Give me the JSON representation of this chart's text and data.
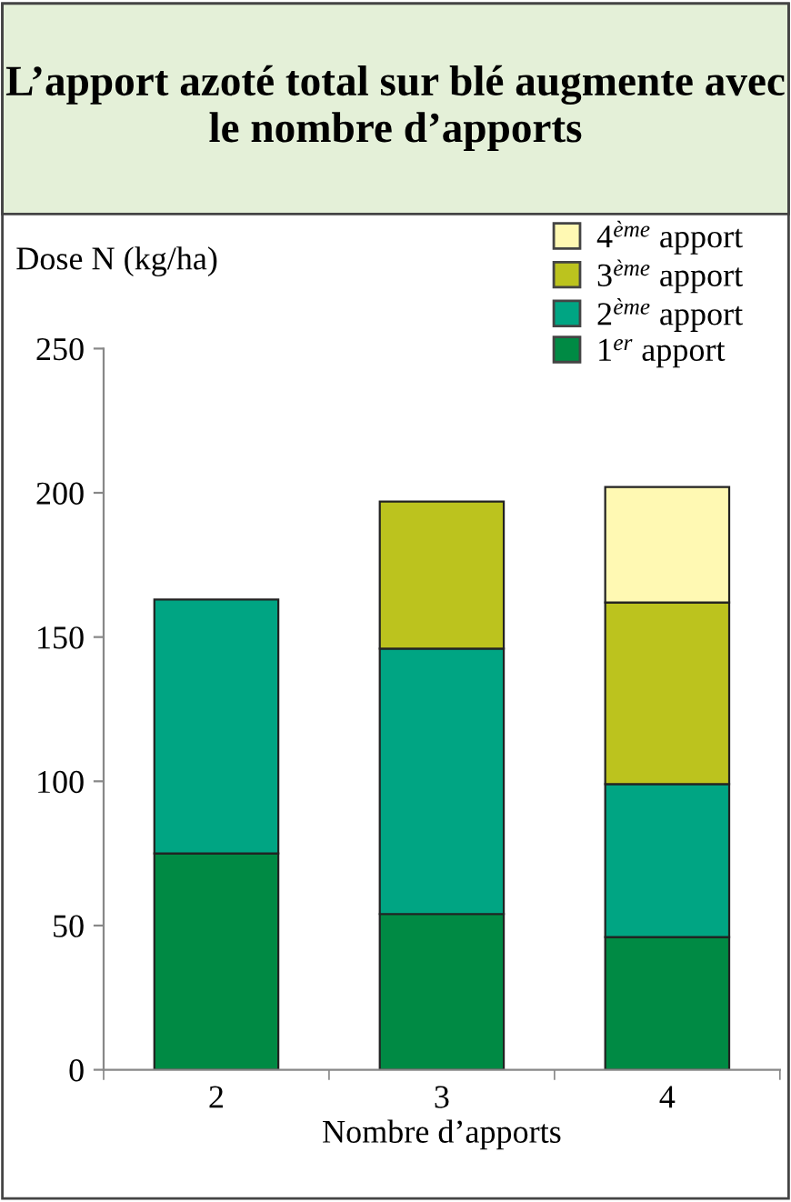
{
  "chart_data": {
    "type": "bar",
    "title": "L’apport azoté total sur blé augmente avec le nombre d’apports",
    "xlabel": "Nombre d’apports",
    "ylabel": "Dose N (kg/ha)",
    "categories": [
      "2",
      "3",
      "4"
    ],
    "stacked": true,
    "series": [
      {
        "name": "1$^{er}$ apport",
        "color": "#008a44",
        "values": [
          75,
          54,
          46
        ]
      },
      {
        "name": "2$^{ème}$ apport",
        "color": "#00a583",
        "values": [
          88,
          92,
          53
        ]
      },
      {
        "name": "3$^{ème}$ apport",
        "color": "#bcc31e",
        "values": [
          null,
          51,
          63
        ]
      },
      {
        "name": "4$^{ème}$ apport",
        "color": "#fff9b3",
        "values": [
          null,
          null,
          40
        ]
      }
    ],
    "ylim": [
      0,
      250
    ],
    "yticks": [
      0,
      50,
      100,
      150,
      200,
      250
    ],
    "grid": false,
    "legend": "top right"
  }
}
